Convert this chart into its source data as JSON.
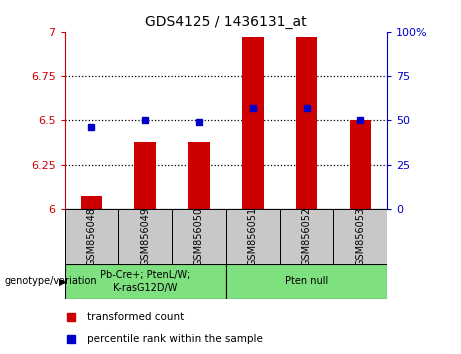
{
  "title": "GDS4125 / 1436131_at",
  "samples": [
    "GSM856048",
    "GSM856049",
    "GSM856050",
    "GSM856051",
    "GSM856052",
    "GSM856053"
  ],
  "red_values": [
    6.07,
    6.38,
    6.38,
    6.97,
    6.97,
    6.5
  ],
  "blue_values": [
    6.46,
    6.5,
    6.49,
    6.57,
    6.57,
    6.5
  ],
  "ylim_left": [
    6.0,
    7.0
  ],
  "ylim_right": [
    0,
    100
  ],
  "yticks_left": [
    6.0,
    6.25,
    6.5,
    6.75,
    7.0
  ],
  "ytick_labels_left": [
    "6",
    "6.25",
    "6.5",
    "6.75",
    "7"
  ],
  "yticks_right": [
    0,
    25,
    50,
    75,
    100
  ],
  "ytick_labels_right": [
    "0",
    "25",
    "50",
    "75",
    "100%"
  ],
  "grid_lines": [
    6.25,
    6.5,
    6.75
  ],
  "groups": [
    {
      "label": "Pb-Cre+; PtenL/W;\nK-rasG12D/W",
      "start": 0,
      "end": 3,
      "color": "#7EE07E"
    },
    {
      "label": "Pten null",
      "start": 3,
      "end": 6,
      "color": "#7EE07E"
    }
  ],
  "group_label": "genotype/variation",
  "legend_red": "transformed count",
  "legend_blue": "percentile rank within the sample",
  "bar_color": "#CC0000",
  "dot_color": "#0000CC",
  "sample_bg": "#C8C8C8",
  "left_axis_color": "#CC0000",
  "right_axis_color": "#0000CC",
  "bar_width": 0.4
}
